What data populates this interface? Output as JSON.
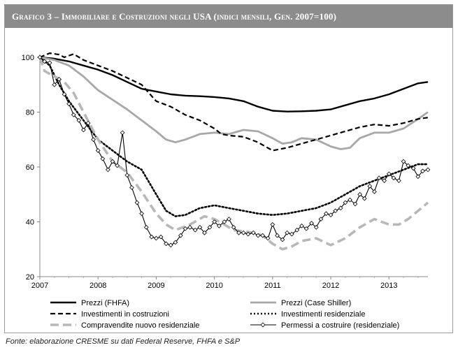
{
  "title": "Grafico 3 – Immobiliare e Costruzioni negli USA (indici mensili, Gen. 2007=100)",
  "source": "Fonte: elaborazione CRESME su dati Federal Reserve, FHFA e S&P",
  "chart_data": {
    "type": "line",
    "xlim": [
      2007,
      2013.67
    ],
    "ylim": [
      20,
      100
    ],
    "yticks": [
      20,
      40,
      60,
      80,
      100
    ],
    "xticks": [
      "2007",
      "2008",
      "2009",
      "2010",
      "2011",
      "2012",
      "2013"
    ],
    "grid": false,
    "legend_position": "bottom",
    "series": [
      {
        "name": "Prezzi (FHFA)",
        "style": "solid",
        "color": "#000000",
        "width": 2.4,
        "points": [
          [
            2007,
            100
          ],
          [
            2007.25,
            99.5
          ],
          [
            2007.5,
            98.5
          ],
          [
            2007.75,
            97
          ],
          [
            2008,
            95.5
          ],
          [
            2008.25,
            93.5
          ],
          [
            2008.5,
            91
          ],
          [
            2008.75,
            88.5
          ],
          [
            2009,
            87.5
          ],
          [
            2009.25,
            86.5
          ],
          [
            2009.5,
            86
          ],
          [
            2009.75,
            85.8
          ],
          [
            2010,
            85.5
          ],
          [
            2010.25,
            85
          ],
          [
            2010.5,
            84
          ],
          [
            2010.75,
            82
          ],
          [
            2011,
            80.5
          ],
          [
            2011.25,
            80.2
          ],
          [
            2011.5,
            80.3
          ],
          [
            2011.75,
            80.5
          ],
          [
            2012,
            81
          ],
          [
            2012.25,
            82.5
          ],
          [
            2012.5,
            84
          ],
          [
            2012.75,
            85
          ],
          [
            2013,
            86.5
          ],
          [
            2013.25,
            88.5
          ],
          [
            2013.5,
            90.5
          ],
          [
            2013.67,
            91
          ]
        ]
      },
      {
        "name": "Prezzi (Case Shiller)",
        "style": "solid",
        "color": "#a8a8a8",
        "width": 2.8,
        "points": [
          [
            2007,
            100
          ],
          [
            2007.25,
            99
          ],
          [
            2007.5,
            97
          ],
          [
            2007.75,
            93
          ],
          [
            2008,
            88
          ],
          [
            2008.25,
            84.5
          ],
          [
            2008.5,
            81
          ],
          [
            2008.75,
            77
          ],
          [
            2009,
            73
          ],
          [
            2009.17,
            70
          ],
          [
            2009.33,
            69
          ],
          [
            2009.5,
            70
          ],
          [
            2009.75,
            72
          ],
          [
            2010,
            72.5
          ],
          [
            2010.25,
            72
          ],
          [
            2010.5,
            73.5
          ],
          [
            2010.75,
            73
          ],
          [
            2011,
            70.5
          ],
          [
            2011.17,
            68.5
          ],
          [
            2011.33,
            69
          ],
          [
            2011.5,
            70.5
          ],
          [
            2011.75,
            70
          ],
          [
            2012,
            67.5
          ],
          [
            2012.17,
            66.5
          ],
          [
            2012.33,
            67
          ],
          [
            2012.5,
            70.5
          ],
          [
            2012.75,
            72.5
          ],
          [
            2013,
            72.5
          ],
          [
            2013.25,
            74
          ],
          [
            2013.5,
            77.5
          ],
          [
            2013.67,
            80
          ]
        ]
      },
      {
        "name": "Investimenti in costruzioni",
        "style": "dash",
        "color": "#000000",
        "width": 2.2,
        "points": [
          [
            2007,
            100
          ],
          [
            2007.17,
            101.5
          ],
          [
            2007.33,
            101
          ],
          [
            2007.42,
            100
          ],
          [
            2007.58,
            101.2
          ],
          [
            2007.75,
            99
          ],
          [
            2008,
            97
          ],
          [
            2008.25,
            95
          ],
          [
            2008.5,
            92.5
          ],
          [
            2008.75,
            90
          ],
          [
            2009,
            84
          ],
          [
            2009.25,
            82
          ],
          [
            2009.5,
            79
          ],
          [
            2009.75,
            77
          ],
          [
            2010,
            74
          ],
          [
            2010.12,
            72
          ],
          [
            2010.25,
            71.5
          ],
          [
            2010.5,
            71
          ],
          [
            2010.75,
            69
          ],
          [
            2011,
            66
          ],
          [
            2011.25,
            67
          ],
          [
            2011.5,
            68.5
          ],
          [
            2011.75,
            70
          ],
          [
            2012,
            71.5
          ],
          [
            2012.25,
            73
          ],
          [
            2012.5,
            74.5
          ],
          [
            2012.75,
            75.5
          ],
          [
            2013,
            75
          ],
          [
            2013.25,
            76
          ],
          [
            2013.5,
            77.5
          ],
          [
            2013.67,
            78
          ]
        ]
      },
      {
        "name": "Investimenti residenziale",
        "style": "dot",
        "color": "#000000",
        "width": 2.6,
        "points": [
          [
            2007,
            100
          ],
          [
            2007.17,
            97
          ],
          [
            2007.33,
            90
          ],
          [
            2007.5,
            84
          ],
          [
            2007.75,
            77
          ],
          [
            2008,
            70
          ],
          [
            2008.25,
            66
          ],
          [
            2008.5,
            62
          ],
          [
            2008.75,
            59
          ],
          [
            2009,
            50
          ],
          [
            2009.17,
            44
          ],
          [
            2009.33,
            42
          ],
          [
            2009.5,
            42.5
          ],
          [
            2009.75,
            45
          ],
          [
            2010,
            46
          ],
          [
            2010.25,
            45
          ],
          [
            2010.5,
            44
          ],
          [
            2010.75,
            43
          ],
          [
            2011,
            42.5
          ],
          [
            2011.25,
            43
          ],
          [
            2011.5,
            44
          ],
          [
            2011.75,
            45
          ],
          [
            2012,
            47
          ],
          [
            2012.25,
            50
          ],
          [
            2012.5,
            53
          ],
          [
            2012.75,
            55
          ],
          [
            2013,
            57
          ],
          [
            2013.25,
            59
          ],
          [
            2013.5,
            61
          ],
          [
            2013.67,
            61
          ]
        ]
      },
      {
        "name": "Compravendite nuovo residenziale",
        "style": "longdash",
        "color": "#b8b8b8",
        "width": 3.6,
        "points": [
          [
            2007,
            100
          ],
          [
            2007.08,
            95
          ],
          [
            2007.25,
            93
          ],
          [
            2007.42,
            91
          ],
          [
            2007.58,
            87
          ],
          [
            2007.75,
            80
          ],
          [
            2008,
            70
          ],
          [
            2008.25,
            62
          ],
          [
            2008.5,
            58
          ],
          [
            2008.75,
            51
          ],
          [
            2009,
            43
          ],
          [
            2009.17,
            39
          ],
          [
            2009.33,
            37
          ],
          [
            2009.58,
            39
          ],
          [
            2009.83,
            42
          ],
          [
            2010,
            41
          ],
          [
            2010.17,
            39
          ],
          [
            2010.33,
            37
          ],
          [
            2010.5,
            36.5
          ],
          [
            2010.67,
            36
          ],
          [
            2010.83,
            35
          ],
          [
            2011,
            32
          ],
          [
            2011.17,
            30
          ],
          [
            2011.33,
            31
          ],
          [
            2011.5,
            33
          ],
          [
            2011.75,
            34
          ],
          [
            2012,
            31.5
          ],
          [
            2012.25,
            34
          ],
          [
            2012.5,
            38
          ],
          [
            2012.75,
            41
          ],
          [
            2013,
            39
          ],
          [
            2013.17,
            39
          ],
          [
            2013.33,
            41
          ],
          [
            2013.5,
            44
          ],
          [
            2013.67,
            47
          ]
        ]
      },
      {
        "name": "Permessi a costruire (residenziale)",
        "style": "marker",
        "color": "#000000",
        "width": 1.1,
        "points": [
          [
            2007,
            100
          ],
          [
            2007.08,
            98.5
          ],
          [
            2007.17,
            98
          ],
          [
            2007.25,
            90
          ],
          [
            2007.33,
            92
          ],
          [
            2007.42,
            86.5
          ],
          [
            2007.5,
            83
          ],
          [
            2007.58,
            79
          ],
          [
            2007.67,
            77
          ],
          [
            2007.75,
            73.5
          ],
          [
            2007.83,
            76
          ],
          [
            2007.92,
            70
          ],
          [
            2008,
            66
          ],
          [
            2008.08,
            63
          ],
          [
            2008.17,
            59
          ],
          [
            2008.25,
            62
          ],
          [
            2008.33,
            60.5
          ],
          [
            2008.42,
            72.5
          ],
          [
            2008.5,
            57
          ],
          [
            2008.58,
            52.5
          ],
          [
            2008.67,
            47
          ],
          [
            2008.75,
            43
          ],
          [
            2008.83,
            38
          ],
          [
            2008.92,
            34.5
          ],
          [
            2009,
            34
          ],
          [
            2009.08,
            34.5
          ],
          [
            2009.17,
            32
          ],
          [
            2009.25,
            31.5
          ],
          [
            2009.33,
            32.5
          ],
          [
            2009.42,
            35
          ],
          [
            2009.5,
            37.5
          ],
          [
            2009.58,
            38
          ],
          [
            2009.67,
            37
          ],
          [
            2009.75,
            38
          ],
          [
            2009.83,
            36
          ],
          [
            2009.92,
            38
          ],
          [
            2010,
            40
          ],
          [
            2010.08,
            38.5
          ],
          [
            2010.17,
            40
          ],
          [
            2010.25,
            41
          ],
          [
            2010.33,
            38
          ],
          [
            2010.42,
            36
          ],
          [
            2010.5,
            36
          ],
          [
            2010.58,
            35.5
          ],
          [
            2010.67,
            36
          ],
          [
            2010.75,
            35
          ],
          [
            2010.83,
            35
          ],
          [
            2010.92,
            34
          ],
          [
            2011,
            39
          ],
          [
            2011.08,
            35
          ],
          [
            2011.17,
            33.5
          ],
          [
            2011.25,
            36
          ],
          [
            2011.33,
            35.5
          ],
          [
            2011.42,
            37
          ],
          [
            2011.5,
            38.5
          ],
          [
            2011.58,
            37.5
          ],
          [
            2011.67,
            39.5
          ],
          [
            2011.75,
            38
          ],
          [
            2011.83,
            41
          ],
          [
            2011.92,
            43
          ],
          [
            2012,
            42.5
          ],
          [
            2012.08,
            44
          ],
          [
            2012.17,
            45
          ],
          [
            2012.25,
            47
          ],
          [
            2012.33,
            48
          ],
          [
            2012.42,
            46.5
          ],
          [
            2012.5,
            50
          ],
          [
            2012.58,
            48.5
          ],
          [
            2012.67,
            53
          ],
          [
            2012.75,
            51
          ],
          [
            2012.83,
            56
          ],
          [
            2012.92,
            55
          ],
          [
            2013,
            57.5
          ],
          [
            2013.08,
            56
          ],
          [
            2013.17,
            55
          ],
          [
            2013.25,
            62
          ],
          [
            2013.33,
            60.5
          ],
          [
            2013.42,
            59.5
          ],
          [
            2013.5,
            56.5
          ],
          [
            2013.58,
            58.5
          ],
          [
            2013.67,
            59
          ]
        ]
      }
    ]
  }
}
